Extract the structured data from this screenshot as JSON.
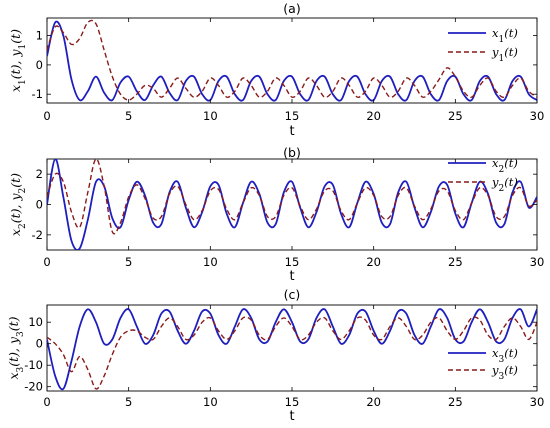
{
  "chart_data": [
    {
      "type": "line",
      "title": "(a)",
      "xlabel": "t",
      "ylabel": "x_1(t), y_1(t)",
      "xlim": [
        0,
        30
      ],
      "ylim": [
        -1.3,
        1.6
      ],
      "xticks": [
        0,
        5,
        10,
        15,
        20,
        25,
        30
      ],
      "yticks": [
        -1,
        0,
        1
      ],
      "grid": false,
      "legend_position": "top-right",
      "series": [
        {
          "name": "x_1(t)",
          "color": "#1f1fbf",
          "style": "solid",
          "x": [
            0,
            0.5,
            1,
            1.5,
            2,
            2.5,
            3,
            3.5,
            4,
            4.5,
            5,
            5.5,
            6,
            6.5,
            7,
            7.5,
            8,
            8.5,
            9,
            9.5,
            10,
            10.5,
            11,
            11.5,
            12,
            12.5,
            13,
            13.5,
            14,
            14.5,
            15,
            15.5,
            16,
            16.5,
            17,
            17.5,
            18,
            18.5,
            19,
            19.5,
            20,
            20.5,
            21,
            21.5,
            22,
            22.5,
            23,
            23.5,
            24,
            24.5,
            25,
            25.5,
            26,
            26.5,
            27,
            27.5,
            28,
            28.5,
            29,
            29.5,
            30
          ],
          "y": [
            0.3,
            1.45,
            1.0,
            -0.5,
            -1.2,
            -0.9,
            -0.4,
            -0.95,
            -1.2,
            -0.6,
            -0.4,
            -0.9,
            -1.2,
            -0.7,
            -0.4,
            -0.95,
            -1.2,
            -0.55,
            -0.4,
            -1.0,
            -1.2,
            -0.55,
            -0.4,
            -1.0,
            -1.2,
            -0.55,
            -0.4,
            -1.0,
            -1.2,
            -0.55,
            -0.4,
            -1.0,
            -1.2,
            -0.55,
            -0.4,
            -1.0,
            -1.2,
            -0.55,
            -0.4,
            -1.0,
            -1.2,
            -0.55,
            -0.4,
            -1.0,
            -1.2,
            -0.55,
            -0.4,
            -1.0,
            -1.2,
            -0.55,
            -0.4,
            -1.0,
            -1.2,
            -0.55,
            -0.4,
            -1.0,
            -1.2,
            -0.55,
            -0.4,
            -1.0,
            -1.2
          ]
        },
        {
          "name": "y_1(t)",
          "color": "#8b1a1a",
          "style": "dashed",
          "x": [
            0,
            0.5,
            1,
            1.5,
            2,
            2.5,
            3,
            3.5,
            4,
            4.5,
            5,
            5.5,
            6,
            6.5,
            7,
            7.5,
            8,
            8.5,
            9,
            9.5,
            10,
            10.5,
            11,
            11.5,
            12,
            12.5,
            13,
            13.5,
            14,
            14.5,
            15,
            15.5,
            16,
            16.5,
            17,
            17.5,
            18,
            18.5,
            19,
            19.5,
            20,
            20.5,
            21,
            21.5,
            22,
            22.5,
            23,
            23.5,
            24,
            24.5,
            25,
            25.5,
            26,
            26.5,
            27,
            27.5,
            28,
            28.5,
            29,
            29.5,
            30
          ],
          "y": [
            0.5,
            1.3,
            1.1,
            0.7,
            0.9,
            1.45,
            1.4,
            0.5,
            -0.4,
            -1.0,
            -1.2,
            -1.0,
            -0.7,
            -0.8,
            -1.1,
            -0.8,
            -0.45,
            -0.8,
            -1.1,
            -0.9,
            -0.45,
            -0.7,
            -1.1,
            -0.9,
            -0.45,
            -0.7,
            -1.1,
            -0.9,
            -0.45,
            -0.7,
            -1.1,
            -0.9,
            -0.45,
            -0.7,
            -1.1,
            -0.9,
            -0.45,
            -0.7,
            -1.1,
            -0.9,
            -0.45,
            -0.7,
            -1.1,
            -0.9,
            -0.45,
            -0.7,
            -1.1,
            -0.9,
            -0.5,
            -0.1,
            -0.4,
            -0.9,
            -1.1,
            -0.7,
            -0.45,
            -0.9,
            -1.1,
            -0.7,
            -0.45,
            -0.9,
            -1.1
          ]
        }
      ]
    },
    {
      "type": "line",
      "title": "(b)",
      "xlabel": "t",
      "ylabel": "x_2(t), y_2(t)",
      "xlim": [
        0,
        30
      ],
      "ylim": [
        -3,
        3
      ],
      "xticks": [
        0,
        5,
        10,
        15,
        20,
        25,
        30
      ],
      "yticks": [
        -2,
        0,
        2
      ],
      "grid": false,
      "legend_position": "top-right",
      "series": [
        {
          "name": "x_2(t)",
          "color": "#1f1fbf",
          "style": "solid",
          "x": [
            0,
            0.5,
            1,
            1.5,
            2,
            2.5,
            3,
            3.5,
            4,
            4.5,
            5,
            5.5,
            6,
            6.5,
            7,
            7.5,
            8,
            8.5,
            9,
            9.5,
            10,
            10.5,
            11,
            11.5,
            12,
            12.5,
            13,
            13.5,
            14,
            14.5,
            15,
            15.5,
            16,
            16.5,
            17,
            17.5,
            18,
            18.5,
            19,
            19.5,
            20,
            20.5,
            21,
            21.5,
            22,
            22.5,
            23,
            23.5,
            24,
            24.5,
            25,
            25.5,
            26,
            26.5,
            27,
            27.5,
            28,
            28.5,
            29,
            29.5,
            30
          ],
          "y": [
            0,
            3.0,
            0.5,
            -2.4,
            -2.9,
            -1.0,
            1.5,
            1.2,
            -0.9,
            -1.5,
            0.3,
            1.5,
            0.6,
            -1.2,
            -1.3,
            0.8,
            1.5,
            -0.2,
            -1.5,
            -0.5,
            1.2,
            1.3,
            -0.6,
            -1.5,
            0.1,
            1.5,
            0.7,
            -1.2,
            -1.3,
            0.8,
            1.5,
            -0.2,
            -1.5,
            -0.5,
            1.2,
            1.3,
            -0.6,
            -1.5,
            0.1,
            1.5,
            0.7,
            -1.2,
            -1.3,
            0.8,
            1.5,
            -0.2,
            -1.5,
            -0.5,
            1.2,
            1.3,
            -0.6,
            -1.5,
            0.1,
            1.5,
            0.7,
            -1.2,
            -1.3,
            0.8,
            1.5,
            -0.2,
            0.5
          ]
        },
        {
          "name": "y_2(t)",
          "color": "#8b1a1a",
          "style": "dashed",
          "x": [
            0,
            0.5,
            1,
            1.5,
            2,
            2.5,
            3,
            3.5,
            4,
            4.5,
            5,
            5.5,
            6,
            6.5,
            7,
            7.5,
            8,
            8.5,
            9,
            9.5,
            10,
            10.5,
            11,
            11.5,
            12,
            12.5,
            13,
            13.5,
            14,
            14.5,
            15,
            15.5,
            16,
            16.5,
            17,
            17.5,
            18,
            18.5,
            19,
            19.5,
            20,
            20.5,
            21,
            21.5,
            22,
            22.5,
            23,
            23.5,
            24,
            24.5,
            25,
            25.5,
            26,
            26.5,
            27,
            27.5,
            28,
            28.5,
            29,
            29.5,
            30
          ],
          "y": [
            0.5,
            2.0,
            1.5,
            -0.5,
            -1.5,
            0.8,
            3.0,
            1.2,
            -1.8,
            -1.2,
            0.5,
            1.3,
            0.4,
            -0.9,
            -0.8,
            0.7,
            1.2,
            0.0,
            -1.0,
            -0.4,
            0.9,
            1.0,
            -0.3,
            -1.0,
            0.1,
            1.1,
            0.6,
            -0.8,
            -0.8,
            0.6,
            1.1,
            -0.1,
            -1.0,
            -0.3,
            0.9,
            0.9,
            -0.4,
            -1.0,
            0.1,
            1.1,
            0.6,
            -0.8,
            -0.8,
            0.6,
            1.1,
            -0.1,
            -1.0,
            -0.3,
            0.9,
            0.9,
            -0.4,
            -1.0,
            0.1,
            1.1,
            0.6,
            -0.8,
            -0.8,
            0.6,
            1.1,
            -0.1,
            0.3
          ]
        }
      ]
    },
    {
      "type": "line",
      "title": "(c)",
      "xlabel": "t",
      "ylabel": "x_3(t), y_3(t)",
      "xlim": [
        0,
        30
      ],
      "ylim": [
        -22,
        18
      ],
      "xticks": [
        0,
        5,
        10,
        15,
        20,
        25,
        30
      ],
      "yticks": [
        -20,
        -10,
        0,
        10
      ],
      "grid": false,
      "legend_position": "bottom-right",
      "series": [
        {
          "name": "x_3(t)",
          "color": "#1f1fbf",
          "style": "solid",
          "x": [
            0,
            0.5,
            1,
            1.5,
            2,
            2.5,
            3,
            3.5,
            4,
            4.5,
            5,
            5.5,
            6,
            6.5,
            7,
            7.5,
            8,
            8.5,
            9,
            9.5,
            10,
            10.5,
            11,
            11.5,
            12,
            12.5,
            13,
            13.5,
            14,
            14.5,
            15,
            15.5,
            16,
            16.5,
            17,
            17.5,
            18,
            18.5,
            19,
            19.5,
            20,
            20.5,
            21,
            21.5,
            22,
            22.5,
            23,
            23.5,
            24,
            24.5,
            25,
            25.5,
            26,
            26.5,
            27,
            27.5,
            28,
            28.5,
            29,
            29.5,
            30
          ],
          "y": [
            2,
            -15,
            -21,
            -8,
            8,
            16,
            10,
            0,
            2,
            12,
            16,
            8,
            0,
            4,
            14,
            15,
            6,
            0,
            6,
            15,
            14,
            4,
            0,
            8,
            16,
            12,
            2,
            1,
            10,
            16,
            10,
            1,
            2,
            12,
            16,
            8,
            0,
            4,
            14,
            15,
            6,
            0,
            6,
            15,
            14,
            4,
            0,
            8,
            16,
            12,
            2,
            1,
            10,
            16,
            10,
            1,
            2,
            12,
            16,
            8,
            16
          ]
        },
        {
          "name": "y_3(t)",
          "color": "#8b1a1a",
          "style": "dashed",
          "x": [
            0,
            0.5,
            1,
            1.5,
            2,
            2.5,
            3,
            3.5,
            4,
            4.5,
            5,
            5.5,
            6,
            6.5,
            7,
            7.5,
            8,
            8.5,
            9,
            9.5,
            10,
            10.5,
            11,
            11.5,
            12,
            12.5,
            13,
            13.5,
            14,
            14.5,
            15,
            15.5,
            16,
            16.5,
            17,
            17.5,
            18,
            18.5,
            19,
            19.5,
            20,
            20.5,
            21,
            21.5,
            22,
            22.5,
            23,
            23.5,
            24,
            24.5,
            25,
            25.5,
            26,
            26.5,
            27,
            27.5,
            28,
            28.5,
            29,
            29.5,
            30
          ],
          "y": [
            3,
            0,
            -5,
            -13,
            -6,
            -12,
            -21,
            -15,
            -5,
            3,
            6,
            6,
            3,
            2,
            8,
            12,
            8,
            2,
            4,
            10,
            12,
            6,
            2,
            6,
            12,
            11,
            4,
            2,
            8,
            12,
            8,
            2,
            4,
            10,
            12,
            6,
            2,
            6,
            12,
            11,
            4,
            2,
            8,
            12,
            8,
            2,
            4,
            10,
            12,
            6,
            2,
            6,
            12,
            11,
            4,
            2,
            8,
            12,
            8,
            2,
            10
          ]
        }
      ]
    }
  ]
}
